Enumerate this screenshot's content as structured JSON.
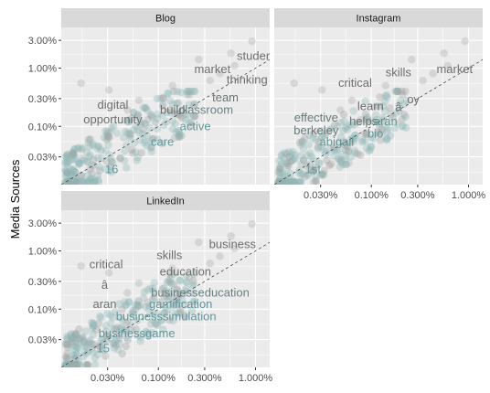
{
  "chart_data": {
    "type": "scatter",
    "ylabel": "Media Sources",
    "xlabel": "",
    "scale": "log10",
    "xlim": [
      0.0001,
      0.014
    ],
    "ylim": [
      0.0001,
      0.05
    ],
    "x_ticks": [
      {
        "value": 0.0003,
        "label": "0.030%"
      },
      {
        "value": 0.001,
        "label": "0.100%"
      },
      {
        "value": 0.003,
        "label": "0.300%"
      },
      {
        "value": 0.01,
        "label": "1.000%"
      }
    ],
    "y_ticks": [
      {
        "value": 0.0003,
        "label": "0.03%"
      },
      {
        "value": 0.001,
        "label": "0.10%"
      },
      {
        "value": 0.003,
        "label": "0.30%"
      },
      {
        "value": 0.01,
        "label": "1.00%"
      },
      {
        "value": 0.03,
        "label": "3.00%"
      }
    ],
    "reference_line": "y = x (dashed)",
    "grid": true,
    "colors": {
      "panel_bg": "#ebebeb",
      "strip_bg": "#d9d9d9",
      "grid": "#ffffff",
      "point": "#8fb8b8",
      "point_gray": "#9e9e9e",
      "label_teal": "#5f9ea0",
      "label_gray": "#6e6e6e"
    },
    "panels": [
      {
        "name": "Blog",
        "labels": [
          {
            "text": "studer",
            "x": 0.0095,
            "y": 0.016,
            "tone": 0.0
          },
          {
            "text": "market",
            "x": 0.0036,
            "y": 0.0095,
            "tone": 0.0
          },
          {
            "text": "thinking",
            "x": 0.0082,
            "y": 0.0063,
            "tone": 0.0
          },
          {
            "text": "team",
            "x": 0.0049,
            "y": 0.0031,
            "tone": 0.1
          },
          {
            "text": "digital",
            "x": 0.00034,
            "y": 0.0023,
            "tone": 0.0
          },
          {
            "text": "build",
            "x": 0.0014,
            "y": 0.0019,
            "tone": 0.0
          },
          {
            "text": "classroom",
            "x": 0.0031,
            "y": 0.0019,
            "tone": 0.4
          },
          {
            "text": "opportunity",
            "x": 0.00034,
            "y": 0.0013,
            "tone": 0.0
          },
          {
            "text": "active",
            "x": 0.0024,
            "y": 0.001,
            "tone": 0.8
          },
          {
            "text": "care",
            "x": 0.0011,
            "y": 0.00054,
            "tone": 0.85
          },
          {
            "text": "16",
            "x": 0.00033,
            "y": 0.00018,
            "tone": 0.9
          }
        ]
      },
      {
        "name": "Instagram",
        "labels": [
          {
            "text": "market",
            "x": 0.0072,
            "y": 0.0095,
            "tone": 0.0
          },
          {
            "text": "skills",
            "x": 0.0019,
            "y": 0.0083,
            "tone": 0.0
          },
          {
            "text": "critical",
            "x": 0.00068,
            "y": 0.0055,
            "tone": 0.0
          },
          {
            "text": "oy",
            "x": 0.0027,
            "y": 0.0029,
            "tone": 0.0
          },
          {
            "text": "learn",
            "x": 0.00098,
            "y": 0.0022,
            "tone": 0.0
          },
          {
            "text": "â",
            "x": 0.0019,
            "y": 0.0021,
            "tone": 0.0
          },
          {
            "text": "effective",
            "x": 0.00027,
            "y": 0.0014,
            "tone": 0.2
          },
          {
            "text": "helps",
            "x": 0.00083,
            "y": 0.0012,
            "tone": 0.2
          },
          {
            "text": "aran",
            "x": 0.0014,
            "y": 0.0012,
            "tone": 0.8
          },
          {
            "text": "berkeley",
            "x": 0.00027,
            "y": 0.00085,
            "tone": 0.2
          },
          {
            "text": "bio",
            "x": 0.0011,
            "y": 0.00074,
            "tone": 0.85
          },
          {
            "text": "abigail",
            "x": 0.00044,
            "y": 0.00054,
            "tone": 0.8
          },
          {
            "text": "1st",
            "x": 0.00025,
            "y": 0.00018,
            "tone": 0.9
          }
        ]
      },
      {
        "name": "LinkedIn",
        "labels": [
          {
            "text": "business",
            "x": 0.0058,
            "y": 0.013,
            "tone": 0.0
          },
          {
            "text": "skills",
            "x": 0.0013,
            "y": 0.0083,
            "tone": 0.0
          },
          {
            "text": "critical",
            "x": 0.00029,
            "y": 0.0058,
            "tone": 0.0
          },
          {
            "text": "education",
            "x": 0.0019,
            "y": 0.0044,
            "tone": 0.0
          },
          {
            "text": "â",
            "x": 0.00028,
            "y": 0.0026,
            "tone": 0.0
          },
          {
            "text": "businesseducation",
            "x": 0.0027,
            "y": 0.0019,
            "tone": 0.4
          },
          {
            "text": "aran",
            "x": 0.00028,
            "y": 0.0012,
            "tone": 0.1
          },
          {
            "text": "gamification",
            "x": 0.0017,
            "y": 0.0012,
            "tone": 0.8
          },
          {
            "text": "businesssimulation",
            "x": 0.0012,
            "y": 0.00074,
            "tone": 0.85
          },
          {
            "text": "businessgame",
            "x": 0.0006,
            "y": 0.00038,
            "tone": 0.85
          },
          {
            "text": "15",
            "x": 0.00027,
            "y": 0.00021,
            "tone": 0.9
          }
        ]
      }
    ],
    "extra_points": [
      {
        "x": 0.0092,
        "y": 0.029
      },
      {
        "x": 0.0056,
        "y": 0.018
      },
      {
        "x": 0.0026,
        "y": 0.014
      },
      {
        "x": 0.0043,
        "y": 0.0081
      },
      {
        "x": 0.00016,
        "y": 0.0055
      },
      {
        "x": 0.00031,
        "y": 0.0042
      },
      {
        "x": 0.0014,
        "y": 0.005
      },
      {
        "x": 0.0021,
        "y": 0.0035
      },
      {
        "x": 0.00063,
        "y": 0.0028
      },
      {
        "x": 0.0011,
        "y": 0.0022
      },
      {
        "x": 0.0061,
        "y": 0.011
      },
      {
        "x": 0.0016,
        "y": 0.0016
      },
      {
        "x": 0.00048,
        "y": 0.0019
      },
      {
        "x": 0.00078,
        "y": 0.0013
      },
      {
        "x": 0.0034,
        "y": 0.0061
      }
    ]
  }
}
